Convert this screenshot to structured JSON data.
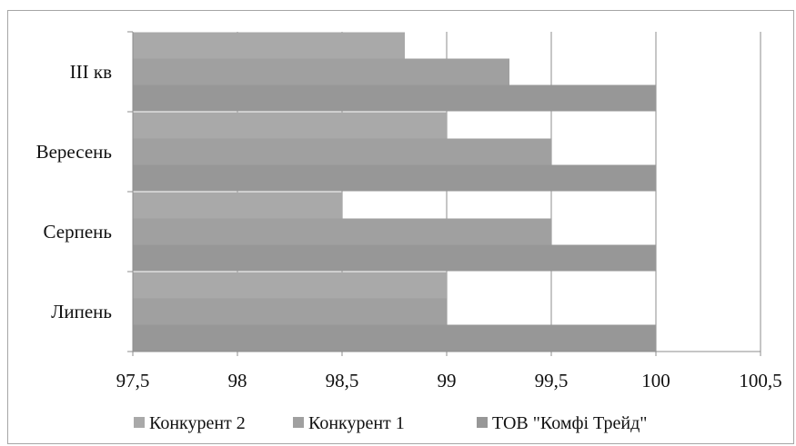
{
  "chart_data": {
    "type": "bar",
    "orientation": "horizontal",
    "categories": [
      "Липень",
      "Серпень",
      "Вересень",
      "ІІІ кв"
    ],
    "series": [
      {
        "name": "Конкурент 2",
        "values": [
          99.0,
          98.5,
          99.0,
          98.8
        ],
        "color": "#a9a9a9"
      },
      {
        "name": "Конкурент 1",
        "values": [
          99.0,
          99.5,
          99.5,
          99.3
        ],
        "color": "#a0a0a0"
      },
      {
        "name": "ТОВ \"Комфі Трейд\"",
        "values": [
          100.0,
          100.0,
          100.0,
          100.0
        ],
        "color": "#979797"
      }
    ],
    "xlim": [
      97.5,
      100.5
    ],
    "xticks": [
      97.5,
      98,
      98.5,
      99,
      99.5,
      100,
      100.5
    ],
    "xtick_labels": [
      "97,5",
      "98",
      "98,5",
      "99",
      "99,5",
      "100",
      "100,5"
    ],
    "grid": true,
    "legend_position": "bottom",
    "title": "",
    "xlabel": "",
    "ylabel": ""
  }
}
